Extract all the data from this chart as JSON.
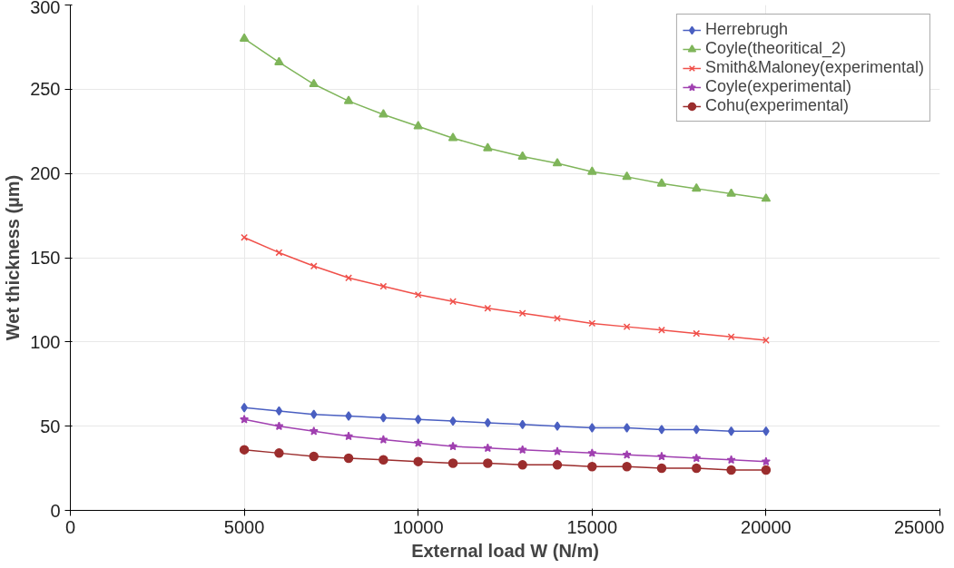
{
  "chart_data": {
    "type": "line",
    "xlabel": "External load W (N/m)",
    "ylabel": "Wet thickness (µm)",
    "x": [
      5000,
      6000,
      7000,
      8000,
      9000,
      10000,
      11000,
      12000,
      13000,
      14000,
      15000,
      16000,
      17000,
      18000,
      19000,
      20000
    ],
    "xlim": [
      0,
      25000
    ],
    "xticks": [
      0,
      5000,
      10000,
      15000,
      20000,
      25000
    ],
    "ylim": [
      0,
      300
    ],
    "yticks": [
      0,
      50,
      100,
      150,
      200,
      250,
      300
    ],
    "grid": true,
    "legend": "top right",
    "series": [
      {
        "name": "Herrebrugh",
        "color": "#4a5fc1",
        "marker": "diamond",
        "values": [
          61,
          59,
          57,
          56,
          55,
          54,
          53,
          52,
          51,
          50,
          49,
          49,
          48,
          48,
          47,
          47
        ]
      },
      {
        "name": "Coyle(theoritical_2)",
        "color": "#7fb55a",
        "marker": "triangle",
        "values": [
          280,
          266,
          253,
          243,
          235,
          228,
          221,
          215,
          210,
          206,
          201,
          198,
          194,
          191,
          188,
          185
        ]
      },
      {
        "name": "Smith&Maloney(experimental)",
        "color": "#f0504a",
        "marker": "cross",
        "values": [
          162,
          153,
          145,
          138,
          133,
          128,
          124,
          120,
          117,
          114,
          111,
          109,
          107,
          105,
          103,
          101
        ]
      },
      {
        "name": "Coyle(experimental)",
        "color": "#a040b0",
        "marker": "star",
        "values": [
          54,
          50,
          47,
          44,
          42,
          40,
          38,
          37,
          36,
          35,
          34,
          33,
          32,
          31,
          30,
          29
        ]
      },
      {
        "name": "Cohu(experimental)",
        "color": "#9b2d2d",
        "marker": "circle",
        "values": [
          36,
          34,
          32,
          31,
          30,
          29,
          28,
          28,
          27,
          27,
          26,
          26,
          25,
          25,
          24,
          24
        ]
      }
    ]
  }
}
